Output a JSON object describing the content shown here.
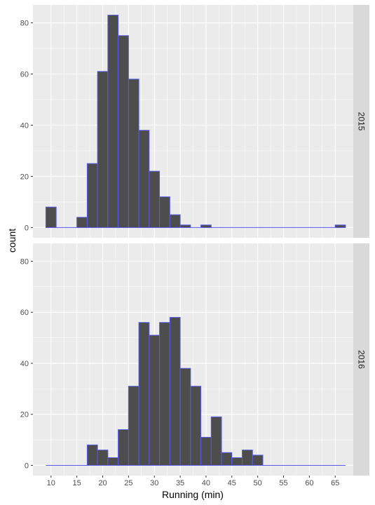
{
  "chart_data": {
    "type": "bar",
    "subtype": "faceted-histogram",
    "xlabel": "Running (min)",
    "ylabel": "count",
    "x_ticks": [
      10,
      15,
      20,
      25,
      30,
      35,
      40,
      45,
      50,
      55,
      60,
      65
    ],
    "y_ticks": [
      0,
      20,
      40,
      60,
      80
    ],
    "xlim": [
      6.5,
      68.5
    ],
    "ylim": [
      -4,
      87
    ],
    "grid": true,
    "colors": {
      "panel_bg": "#ebebeb",
      "grid": "#ffffff",
      "bar_fill": "#4d4d4d",
      "bar_outline": "#5a5ae8",
      "strip_bg": "#d9d9d9"
    },
    "bin_width": 2,
    "bin_starts": [
      9,
      11,
      13,
      15,
      17,
      19,
      21,
      23,
      25,
      27,
      29,
      31,
      33,
      35,
      37,
      39,
      41,
      43,
      45,
      47,
      49,
      51,
      53,
      55,
      57,
      59,
      61,
      63,
      65
    ],
    "panels": [
      {
        "strip": "2015",
        "counts": [
          8,
          0,
          0,
          4,
          25,
          61,
          83,
          75,
          58,
          38,
          22,
          12,
          5,
          1,
          0,
          1,
          0,
          0,
          0,
          0,
          0,
          0,
          0,
          0,
          0,
          0,
          0,
          0,
          1
        ]
      },
      {
        "strip": "2016",
        "counts": [
          0,
          0,
          0,
          0,
          8,
          6,
          3,
          14,
          31,
          56,
          51,
          56,
          58,
          38,
          31,
          11,
          19,
          5,
          3,
          6,
          4,
          0,
          0,
          0,
          0,
          0,
          0,
          0,
          0
        ]
      }
    ]
  }
}
